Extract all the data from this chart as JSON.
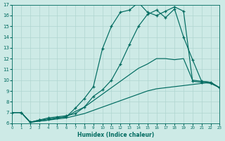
{
  "xlabel": "Humidex (Indice chaleur)",
  "bg_color": "#cdeae6",
  "grid_color": "#b0d5d0",
  "line_color": "#006b60",
  "xlim": [
    0,
    23
  ],
  "ylim": [
    6,
    17
  ],
  "xticks": [
    0,
    1,
    2,
    3,
    4,
    5,
    6,
    7,
    8,
    9,
    10,
    11,
    12,
    13,
    14,
    15,
    16,
    17,
    18,
    19,
    20,
    21,
    22,
    23
  ],
  "yticks": [
    6,
    7,
    8,
    9,
    10,
    11,
    12,
    13,
    14,
    15,
    16,
    17
  ],
  "curve1_x": [
    0,
    1,
    2,
    3,
    4,
    5,
    6,
    7,
    8,
    9,
    10,
    11,
    12,
    13,
    14,
    15,
    16,
    17,
    18,
    19,
    20,
    21,
    22,
    23
  ],
  "curve1_y": [
    7.0,
    7.0,
    6.1,
    6.3,
    6.4,
    6.5,
    6.6,
    7.4,
    8.3,
    9.4,
    12.9,
    15.0,
    16.3,
    16.5,
    17.2,
    16.3,
    16.0,
    16.4,
    16.8,
    16.4,
    9.9,
    9.8,
    9.7,
    9.3
  ],
  "curve1_markers": true,
  "curve2_x": [
    0,
    1,
    2,
    3,
    4,
    5,
    6,
    7,
    8,
    9,
    10,
    11,
    12,
    13,
    14,
    15,
    16,
    17,
    18,
    19,
    20,
    21,
    22,
    23
  ],
  "curve2_y": [
    7.0,
    7.0,
    6.1,
    6.3,
    6.5,
    6.6,
    6.7,
    6.9,
    7.5,
    8.5,
    9.1,
    10.0,
    11.5,
    13.3,
    15.0,
    16.1,
    16.5,
    15.8,
    16.6,
    14.0,
    11.9,
    9.9,
    9.8,
    9.3
  ],
  "curve2_markers": true,
  "curve3_x": [
    0,
    1,
    2,
    3,
    4,
    5,
    6,
    7,
    8,
    9,
    10,
    11,
    12,
    13,
    14,
    15,
    16,
    17,
    18,
    19,
    20,
    21,
    22,
    23
  ],
  "curve3_y": [
    7.0,
    7.0,
    6.1,
    6.2,
    6.3,
    6.5,
    6.6,
    7.1,
    7.5,
    8.1,
    8.7,
    9.3,
    9.9,
    10.5,
    11.1,
    11.5,
    12.0,
    12.0,
    11.9,
    12.0,
    10.0,
    9.9,
    9.8,
    9.3
  ],
  "curve3_markers": false,
  "curve4_x": [
    0,
    1,
    2,
    3,
    4,
    5,
    6,
    7,
    8,
    9,
    10,
    11,
    12,
    13,
    14,
    15,
    16,
    17,
    18,
    19,
    20,
    21,
    22,
    23
  ],
  "curve4_y": [
    7.0,
    7.0,
    6.1,
    6.2,
    6.3,
    6.4,
    6.5,
    6.7,
    6.9,
    7.2,
    7.5,
    7.8,
    8.1,
    8.4,
    8.7,
    9.0,
    9.2,
    9.3,
    9.4,
    9.5,
    9.6,
    9.7,
    9.8,
    9.3
  ],
  "curve4_markers": false
}
